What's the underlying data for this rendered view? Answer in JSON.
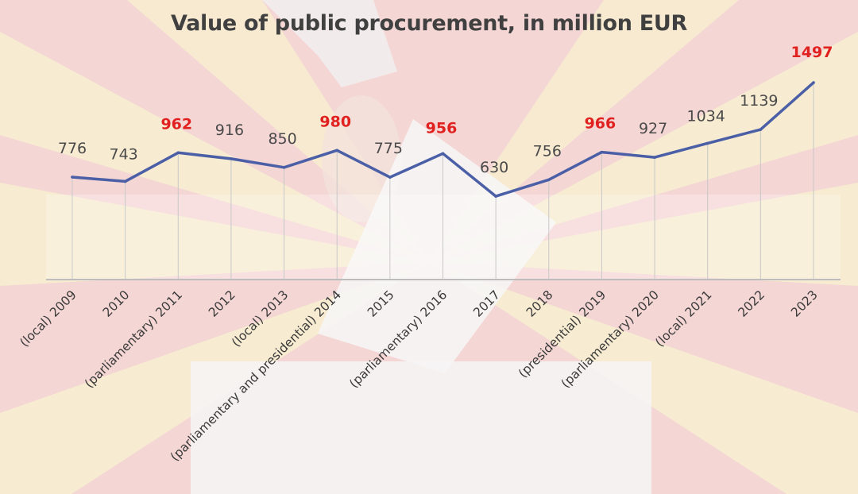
{
  "chart_data": {
    "type": "line",
    "title": "Value of public procurement, in million EUR",
    "xlabel": "",
    "ylabel": "",
    "categories": [
      "(local) 2009",
      "2010",
      "(parliamentary) 2011",
      "2012",
      "(local) 2013",
      "(parliamentary and presidential) 2014",
      "2015",
      "(parliamentary) 2016",
      "2017",
      "2018",
      "(presidential) 2019",
      "(parliamentary) 2020",
      "(local) 2021",
      "2022",
      "2023"
    ],
    "series": [
      {
        "name": "",
        "values": [
          776,
          743,
          962,
          916,
          850,
          980,
          775,
          956,
          630,
          756,
          966,
          927,
          1034,
          1139,
          1497
        ],
        "labels": [
          "776",
          "743",
          "962",
          "916",
          "850",
          "980",
          "775",
          "956",
          "630",
          "756",
          "966",
          "927",
          "1034",
          "1139",
          "1497"
        ]
      }
    ],
    "highlighted": [
      false,
      false,
      true,
      false,
      false,
      true,
      false,
      true,
      false,
      false,
      true,
      false,
      false,
      false,
      true
    ],
    "colors": {
      "line": "#4a5fa6",
      "label": "#4a4a4a",
      "highlight_label": "#e0211f",
      "gridline": "#c8c8c8",
      "axis": "#bdbdbd",
      "tick_label": "#3a3a3a"
    },
    "grid": true,
    "legend": "none"
  }
}
